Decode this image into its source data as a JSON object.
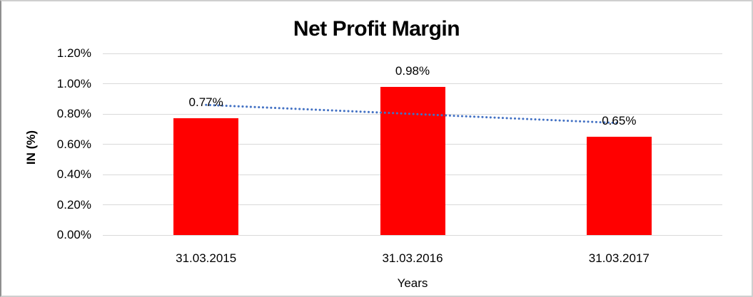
{
  "chart_data": {
    "type": "bar",
    "title": "Net Profit Margin",
    "categories": [
      "31.03.2015",
      "31.03.2016",
      "31.03.2017"
    ],
    "values": [
      0.77,
      0.98,
      0.65
    ],
    "data_labels": [
      "0.77%",
      "0.98%",
      "0.65%"
    ],
    "xlabel": "Years",
    "ylabel": "IN (%)",
    "ylim": [
      0,
      1.2
    ],
    "ytick_step": 0.2,
    "ytick_labels": [
      "0.00%",
      "0.20%",
      "0.40%",
      "0.60%",
      "0.80%",
      "1.00%",
      "1.20%"
    ],
    "grid": true,
    "legend": false,
    "bar_color": "#ff0000",
    "gridline_color": "#d9d9d9",
    "text_color": "#000000",
    "trendline": {
      "type": "linear",
      "style": "dotted",
      "color": "#4472c4",
      "start_value": 0.86,
      "end_value": 0.74
    }
  }
}
